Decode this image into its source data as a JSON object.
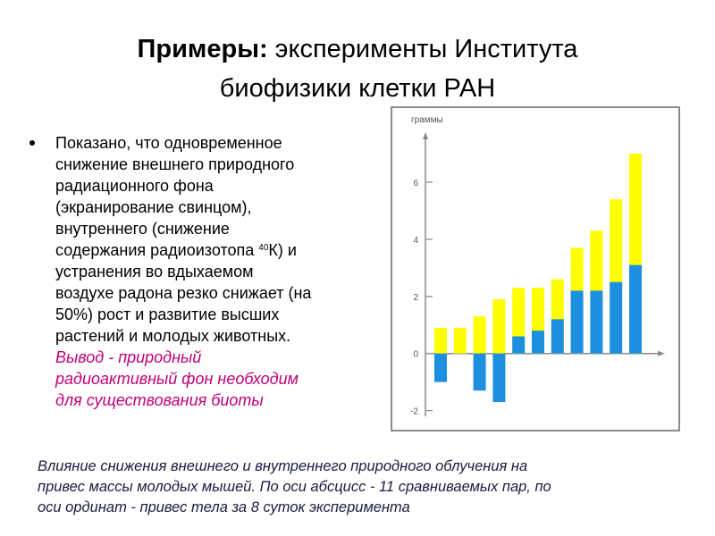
{
  "slide": {
    "title_bold": "Примеры:",
    "title_line1": "эксперименты Института",
    "title_line2": "биофизики клетки РАН",
    "bullet_lines": [
      "Показано, что одновременное",
      "снижение внешнего природного",
      "радиационного фона",
      "(экранирование свинцом),",
      "внутреннего (снижение",
      {
        "before": "содержания радиоизотопа ",
        "sup": "40",
        "after": "К) и"
      },
      "устранения во вдыхаемом",
      "воздухе радона резко снижает (на",
      "50%) рост и развитие высших",
      "растений и молодых животных."
    ],
    "conclusion_lines": [
      "Вывод - природный",
      "радиоактивный фон необходим",
      "для существования биоты"
    ],
    "caption_lines": [
      "Влияние снижения внешнего и внутреннего природного облучения на",
      "привес массы молодых мышей. По оси абсцисс - 11 сравниваемых пар, по",
      "оси ординат - привес тела за 8 суток эксперимента"
    ]
  },
  "chart_data": {
    "type": "bar",
    "y_label": "граммы",
    "categories": [
      null,
      null,
      null,
      null,
      null,
      null,
      null,
      null,
      null,
      null,
      null
    ],
    "series": [
      {
        "color": "#ffff00",
        "values": [
          0.9,
          0.9,
          1.3,
          1.9,
          2.3,
          2.3,
          2.6,
          3.7,
          4.3,
          5.4,
          7.0
        ]
      },
      {
        "color": "#1e8fe0",
        "values": [
          -1.0,
          null,
          -1.3,
          -1.7,
          0.6,
          0.8,
          1.2,
          2.2,
          2.2,
          2.5,
          3.1
        ]
      }
    ],
    "ylim": [
      -2.2,
      7.5
    ],
    "yticks": [
      -2,
      0,
      2,
      4,
      6
    ]
  }
}
